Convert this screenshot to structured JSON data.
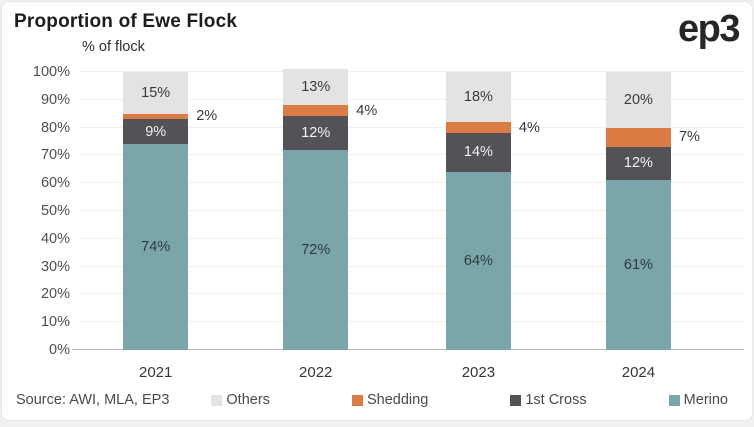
{
  "header": {
    "title": "Proportion of Ewe Flock",
    "axis_label": "% of flock",
    "logo": "ep3"
  },
  "footer": {
    "source": "Source: AWI, MLA, EP3"
  },
  "chart_data": {
    "type": "bar",
    "stacked": true,
    "title": "Proportion of Ewe Flock",
    "ylabel": "% of flock",
    "categories": [
      "2021",
      "2022",
      "2023",
      "2024"
    ],
    "series": [
      {
        "name": "Merino",
        "color": "#7aa6ab",
        "values": [
          74,
          72,
          64,
          61
        ],
        "label_placement": "inside",
        "label_color": "#2e3a3c"
      },
      {
        "name": "1st Cross",
        "color": "#545157",
        "values": [
          9,
          12,
          14,
          12
        ],
        "label_placement": "inside",
        "label_color": "#f3f2f1"
      },
      {
        "name": "Shedding",
        "color": "#dc7c45",
        "values": [
          2,
          4,
          4,
          7
        ],
        "label_placement": "outside",
        "label_color": "#3a3a3a"
      },
      {
        "name": "Others",
        "color": "#e5e3e1",
        "values": [
          15,
          13,
          18,
          20
        ],
        "label_placement": "inside",
        "label_color": "#3a3a3a"
      }
    ],
    "ylim": [
      0,
      100
    ],
    "ytick_step": 10,
    "ytick_suffix": "%",
    "grid": true,
    "legend_position": "bottom",
    "legend": [
      {
        "label": "Others",
        "color": "#e5e3e1"
      },
      {
        "label": "Shedding",
        "color": "#dc7c45"
      },
      {
        "label": "1st Cross",
        "color": "#545157"
      },
      {
        "label": "Merino",
        "color": "#7aa6ab"
      }
    ],
    "source": "Source: AWI, MLA, EP3"
  }
}
